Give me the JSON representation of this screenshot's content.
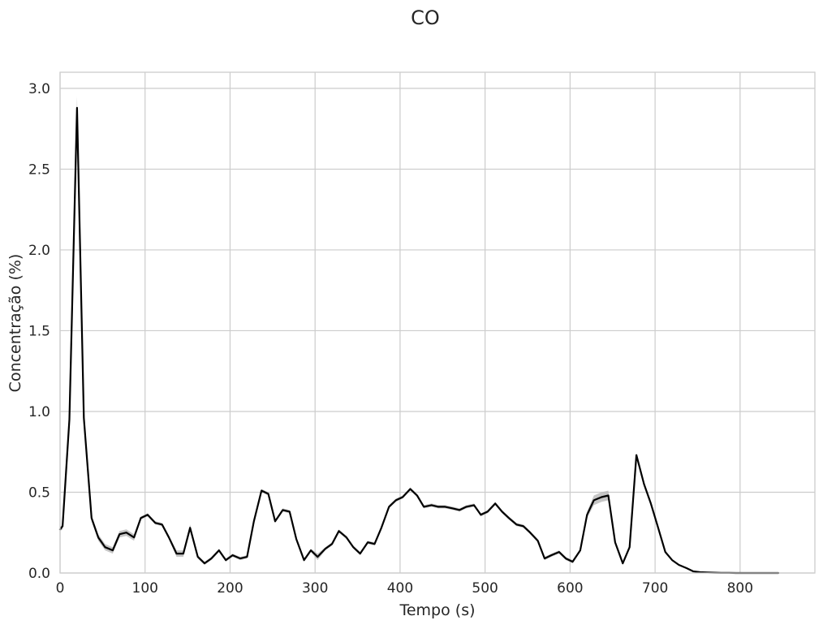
{
  "chart_data": {
    "type": "line",
    "title": "CO",
    "xlabel": "Tempo (s)",
    "ylabel": "Concentração (%)",
    "xlim": [
      0,
      888
    ],
    "ylim": [
      0,
      3.1
    ],
    "x_ticks": [
      0,
      100,
      200,
      300,
      400,
      500,
      600,
      700,
      800
    ],
    "y_ticks": [
      0.0,
      0.5,
      1.0,
      1.5,
      2.0,
      2.5,
      3.0
    ],
    "x_tick_labels": [
      "0",
      "100",
      "200",
      "300",
      "400",
      "500",
      "600",
      "700",
      "800"
    ],
    "y_tick_labels": [
      "0.0",
      "0.5",
      "1.0",
      "1.5",
      "2.0",
      "2.5",
      "3.0"
    ],
    "grid": true,
    "colors": {
      "line": "#000000",
      "band": "#b3b3b3",
      "grid": "#cccccc",
      "spine": "#cccccc"
    },
    "series": [
      {
        "x": [
          0,
          3,
          11,
          20,
          28,
          37,
          45,
          53,
          62,
          70,
          78,
          87,
          95,
          103,
          112,
          120,
          128,
          137,
          145,
          153,
          162,
          170,
          178,
          187,
          195,
          203,
          212,
          220,
          228,
          237,
          245,
          253,
          262,
          270,
          278,
          287,
          295,
          303,
          312,
          320,
          328,
          337,
          345,
          353,
          362,
          370,
          378,
          387,
          395,
          403,
          412,
          420,
          428,
          437,
          445,
          453,
          462,
          470,
          478,
          487,
          495,
          503,
          512,
          520,
          528,
          537,
          545,
          553,
          562,
          570,
          578,
          587,
          595,
          603,
          612,
          620,
          628,
          637,
          645,
          653,
          662,
          670,
          678,
          687,
          695,
          703,
          712,
          720,
          728,
          737,
          745,
          753,
          762,
          770,
          778,
          787,
          795,
          803,
          812,
          820,
          828,
          837,
          845
        ],
        "y": [
          0.27,
          0.29,
          0.95,
          2.88,
          0.96,
          0.34,
          0.22,
          0.16,
          0.14,
          0.24,
          0.25,
          0.22,
          0.34,
          0.36,
          0.31,
          0.3,
          0.22,
          0.12,
          0.12,
          0.28,
          0.1,
          0.06,
          0.09,
          0.14,
          0.08,
          0.11,
          0.09,
          0.1,
          0.32,
          0.51,
          0.49,
          0.32,
          0.39,
          0.38,
          0.21,
          0.08,
          0.14,
          0.1,
          0.15,
          0.18,
          0.26,
          0.22,
          0.16,
          0.12,
          0.19,
          0.18,
          0.28,
          0.41,
          0.45,
          0.47,
          0.52,
          0.48,
          0.41,
          0.42,
          0.41,
          0.41,
          0.4,
          0.39,
          0.41,
          0.42,
          0.36,
          0.38,
          0.43,
          0.38,
          0.34,
          0.3,
          0.29,
          0.25,
          0.2,
          0.09,
          0.11,
          0.13,
          0.09,
          0.07,
          0.14,
          0.36,
          0.45,
          0.47,
          0.48,
          0.19,
          0.06,
          0.16,
          0.73,
          0.55,
          0.43,
          0.29,
          0.13,
          0.08,
          0.05,
          0.03,
          0.01,
          0.005,
          0.003,
          0.002,
          0.001,
          0.001,
          0.0,
          0.0,
          0.0,
          0.0,
          0.0,
          0.0,
          0.0
        ],
        "ci_halfwidth": [
          0.01,
          0.02,
          0.02,
          0.07,
          0.02,
          0.02,
          0.02,
          0.02,
          0.02,
          0.02,
          0.02,
          0.02,
          0.01,
          0.01,
          0.01,
          0.01,
          0.01,
          0.02,
          0.02,
          0.02,
          0.01,
          0.01,
          0.01,
          0.01,
          0.01,
          0.01,
          0.01,
          0.01,
          0.02,
          0.01,
          0.01,
          0.01,
          0.01,
          0.01,
          0.01,
          0.01,
          0.01,
          0.02,
          0.01,
          0.01,
          0.01,
          0.01,
          0.01,
          0.01,
          0.01,
          0.01,
          0.01,
          0.01,
          0.01,
          0.01,
          0.01,
          0.01,
          0.01,
          0.01,
          0.01,
          0.01,
          0.01,
          0.01,
          0.01,
          0.01,
          0.01,
          0.01,
          0.01,
          0.01,
          0.01,
          0.01,
          0.01,
          0.01,
          0.01,
          0.01,
          0.01,
          0.01,
          0.01,
          0.01,
          0.01,
          0.02,
          0.03,
          0.03,
          0.03,
          0.01,
          0.01,
          0.01,
          0.01,
          0.01,
          0.01,
          0.01,
          0.01,
          0.005,
          0.005,
          0.003,
          0.002,
          0.001,
          0.001,
          0.0,
          0.0,
          0.0,
          0.0,
          0.0,
          0.0,
          0.0,
          0.0,
          0.0,
          0.0
        ]
      }
    ]
  }
}
